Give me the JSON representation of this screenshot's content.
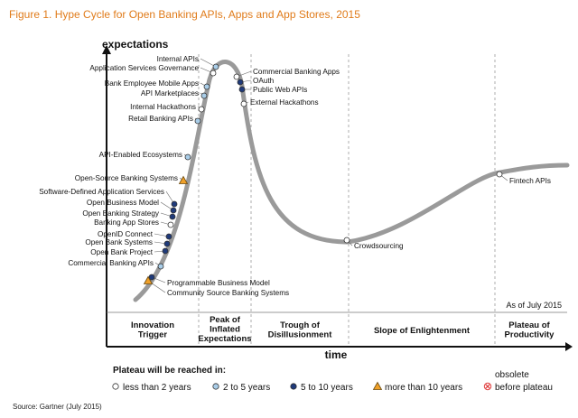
{
  "figure_title": "Figure 1. Hype Cycle for Open Banking APIs, Apps and App Stores, 2015",
  "source": "Source: Gartner (July 2015)",
  "chart_data": {
    "type": "hype-cycle",
    "title": "Figure 1. Hype Cycle for Open Banking APIs, Apps and App Stores, 2015",
    "ylabel": "expectations",
    "xlabel": "time",
    "as_of": "As of July 2015",
    "grid": false,
    "phases": [
      {
        "label": "Innovation Trigger",
        "lines": [
          "Innovation",
          "Trigger"
        ]
      },
      {
        "label": "Peak of Inflated Expectations",
        "lines": [
          "Peak of",
          "Inflated",
          "Expectations"
        ]
      },
      {
        "label": "Trough of Disillusionment",
        "lines": [
          "Trough of",
          "Disillusionment"
        ]
      },
      {
        "label": "Slope of Enlightenment",
        "lines": [
          "Slope of Enlightenment"
        ]
      },
      {
        "label": "Plateau of Productivity",
        "lines": [
          "Plateau of",
          "Productivity"
        ]
      }
    ],
    "legend": {
      "title": "Plateau will be reached in:",
      "items": [
        {
          "key": "lt2",
          "label": "less than 2 years",
          "marker": "circle",
          "color": "#ffffff"
        },
        {
          "key": "2to5",
          "label": "2 to 5 years",
          "marker": "circle",
          "color": "#a9cde8"
        },
        {
          "key": "5to10",
          "label": "5 to 10 years",
          "marker": "circle",
          "color": "#1f3a7a"
        },
        {
          "key": "gt10",
          "label": "more than 10 years",
          "marker": "triangle",
          "color": "#f0a028"
        },
        {
          "key": "obsolete",
          "label": "before plateau",
          "label_top": "obsolete",
          "marker": "cross",
          "color": "#e04040"
        }
      ]
    },
    "technologies": [
      {
        "name": "Internal APIs",
        "plateau": "2to5"
      },
      {
        "name": "Application Services Governance",
        "plateau": "lt2"
      },
      {
        "name": "Bank Employee Mobile Apps",
        "plateau": "2to5"
      },
      {
        "name": "API Marketplaces",
        "plateau": "2to5"
      },
      {
        "name": "Internal Hackathons",
        "plateau": "lt2"
      },
      {
        "name": "Retail Banking APIs",
        "plateau": "2to5"
      },
      {
        "name": "API-Enabled Ecosystems",
        "plateau": "2to5"
      },
      {
        "name": "Open-Source Banking Systems",
        "plateau": "gt10"
      },
      {
        "name": "Software-Defined Application Services",
        "plateau": "5to10"
      },
      {
        "name": "Open Business Model",
        "plateau": "5to10"
      },
      {
        "name": "Open Banking Strategy",
        "plateau": "5to10"
      },
      {
        "name": "Banking App Stores",
        "plateau": "lt2"
      },
      {
        "name": "OpenID Connect",
        "plateau": "5to10"
      },
      {
        "name": "Open Bank Systems",
        "plateau": "5to10"
      },
      {
        "name": "Open Bank Project",
        "plateau": "5to10"
      },
      {
        "name": "Commercial Banking APIs",
        "plateau": "2to5"
      },
      {
        "name": "Programmable Business Model",
        "plateau": "5to10"
      },
      {
        "name": "Community Source Banking Systems",
        "plateau": "gt10"
      },
      {
        "name": "Commercial Banking Apps",
        "plateau": "lt2"
      },
      {
        "name": "OAuth",
        "plateau": "5to10"
      },
      {
        "name": "Public Web APIs",
        "plateau": "5to10"
      },
      {
        "name": "External Hackathons",
        "plateau": "lt2"
      },
      {
        "name": "Crowdsourcing",
        "plateau": "lt2"
      },
      {
        "name": "Fintech APIs",
        "plateau": "lt2"
      }
    ]
  }
}
